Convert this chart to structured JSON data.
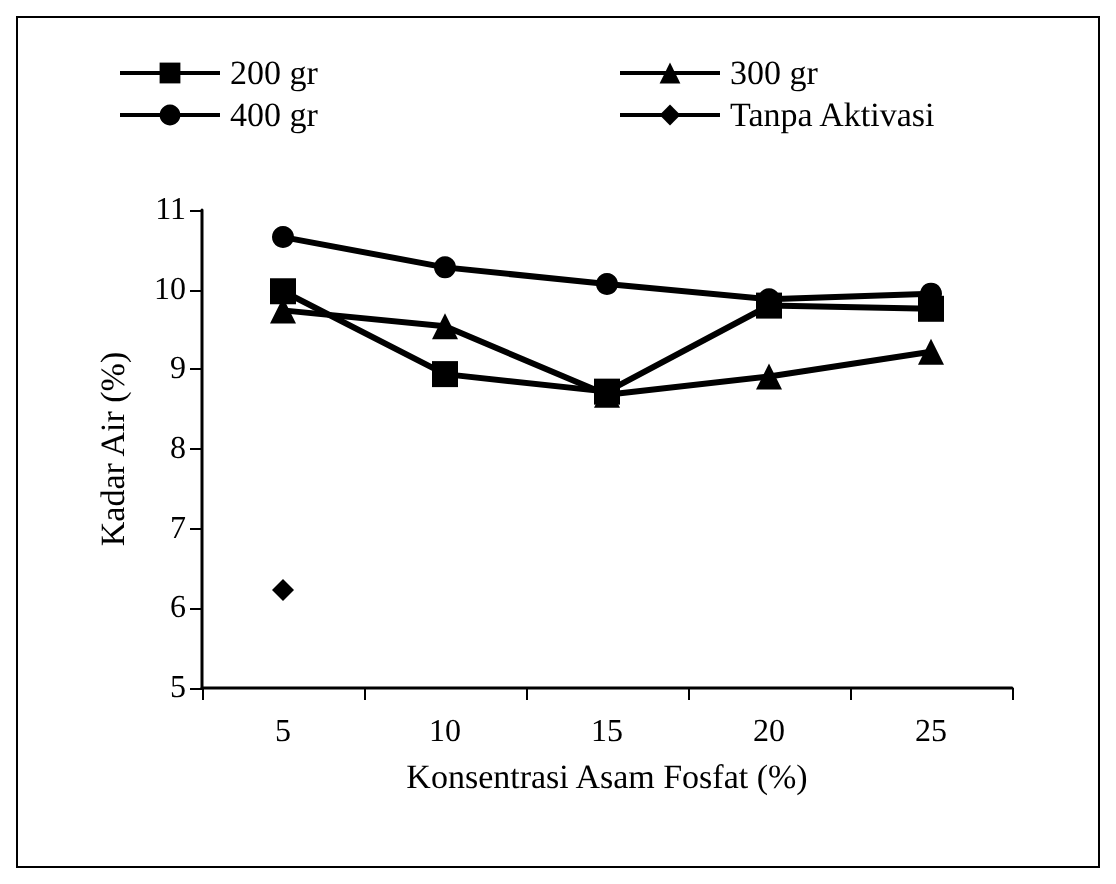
{
  "chart_data": {
    "type": "line",
    "xlabel": "Konsentrasi Asam Fosfat (%)",
    "ylabel": "Kadar Air (%)",
    "categories": [
      "5",
      "10",
      "15",
      "20",
      "25"
    ],
    "ylim": [
      5,
      11
    ],
    "yticks": [
      5,
      6,
      7,
      8,
      9,
      10,
      11
    ],
    "grid": false,
    "legend": "top",
    "series": [
      {
        "name": "200 gr",
        "color": "#000000",
        "marker": "square",
        "values": [
          9.98,
          8.94,
          8.72,
          9.8,
          9.76
        ]
      },
      {
        "name": "300 gr",
        "color": "#000000",
        "marker": "triangle",
        "values": [
          9.74,
          9.54,
          8.68,
          8.91,
          9.22
        ]
      },
      {
        "name": "400 gr",
        "color": "#000000",
        "marker": "circle",
        "values": [
          10.66,
          10.28,
          10.07,
          9.88,
          9.95
        ]
      },
      {
        "name": "Tanpa Aktivasi",
        "color": "#000000",
        "marker": "diamond",
        "values": [
          6.23,
          null,
          null,
          null,
          null
        ]
      }
    ]
  }
}
